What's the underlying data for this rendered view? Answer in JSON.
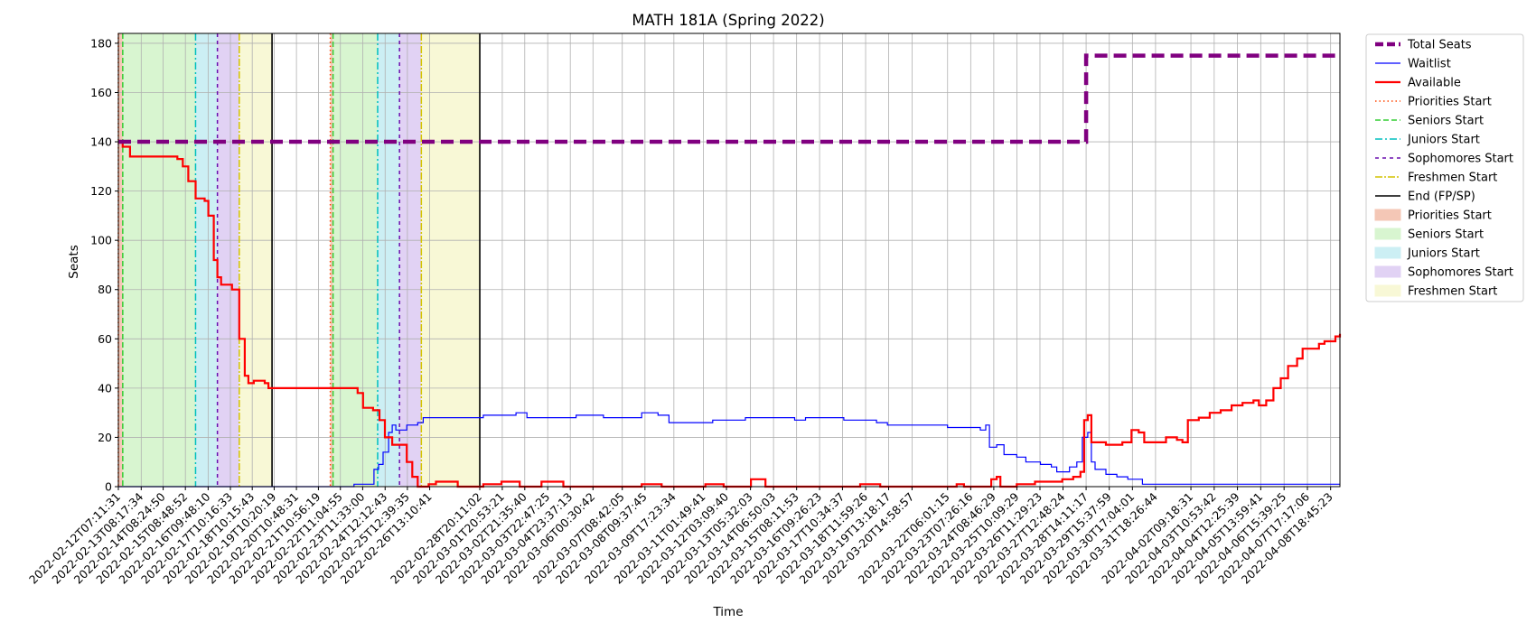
{
  "chart_data": {
    "type": "line",
    "title": "MATH 181A (Spring 2022)",
    "xlabel": "Time",
    "ylabel": "Seats",
    "x_axis": {
      "kind": "datetime",
      "range": [
        "2022-02-12T07:11:31",
        "2022-04-09T05:00:00"
      ],
      "tick_labels": [
        "2022-02-12T07:11:31",
        "2022-02-13T08:17:34",
        "2022-02-14T08:24:50",
        "2022-02-15T08:48:52",
        "2022-02-16T09:48:10",
        "2022-02-17T10:16:33",
        "2022-02-18T10:15:43",
        "2022-02-19T10:20:19",
        "2022-02-20T10:48:31",
        "2022-02-21T10:56:19",
        "2022-02-22T11:04:55",
        "2022-02-23T11:33:00",
        "2022-02-24T12:12:43",
        "2022-02-25T12:39:35",
        "2022-02-26T13:10:41",
        "2022-02-28T20:11:02",
        "2022-03-01T20:53:21",
        "2022-03-02T21:35:40",
        "2022-03-03T22:47:25",
        "2022-03-04T23:37:13",
        "2022-03-06T00:30:42",
        "2022-03-07T08:42:05",
        "2022-03-08T09:37:45",
        "2022-03-09T17:23:34",
        "2022-03-11T01:49:41",
        "2022-03-12T03:09:40",
        "2022-03-13T05:32:03",
        "2022-03-14T06:50:03",
        "2022-03-15T08:11:53",
        "2022-03-16T09:26:23",
        "2022-03-17T10:34:37",
        "2022-03-18T11:59:26",
        "2022-03-19T13:18:17",
        "2022-03-20T14:58:57",
        "2022-03-22T06:01:15",
        "2022-03-23T07:26:16",
        "2022-03-24T08:46:29",
        "2022-03-25T10:09:29",
        "2022-03-26T11:29:23",
        "2022-03-27T12:48:24",
        "2022-03-28T14:11:17",
        "2022-03-29T15:37:59",
        "2022-03-30T17:04:01",
        "2022-03-31T18:26:44",
        "2022-04-02T09:18:31",
        "2022-04-03T10:53:42",
        "2022-04-04T12:25:39",
        "2022-04-05T13:59:41",
        "2022-04-06T15:39:25",
        "2022-04-07T17:17:06",
        "2022-04-08T18:45:23"
      ]
    },
    "ylim": [
      0,
      184
    ],
    "y_ticks": [
      0,
      20,
      40,
      60,
      80,
      100,
      120,
      140,
      160,
      180
    ],
    "grid": true,
    "legend": "outside-right",
    "colors": {
      "total": "#800080",
      "waitlist": "#0000ff",
      "available": "#ff0000",
      "priorities": "#ff4500",
      "seniors": "#32cd32",
      "juniors": "#00bfbf",
      "sophomores": "#6a0dad",
      "freshmen": "#d4c400",
      "end": "#000000",
      "priorities_fill": "#f4c7b6",
      "seniors_fill": "#d8f5d0",
      "juniors_fill": "#cceff4",
      "sophomores_fill": "#e1d2f4",
      "freshmen_fill": "#f8f8d6",
      "grid": "#b0b0b0"
    },
    "series": [
      {
        "name": "Total Seats",
        "points": [
          [
            "2022-02-12T07:11:31",
            140
          ],
          [
            "2022-03-28T14:11:17",
            140
          ],
          [
            "2022-03-28T14:11:17",
            175
          ],
          [
            "2022-04-09T05:00:00",
            175
          ]
        ]
      },
      {
        "name": "Waitlist",
        "points": [
          [
            "2022-02-12T07:11:31",
            0
          ],
          [
            "2022-02-23T01:00:00",
            0
          ],
          [
            "2022-02-23T02:00:00",
            1
          ],
          [
            "2022-02-23T20:00:00",
            1
          ],
          [
            "2022-02-24T00:00:00",
            7
          ],
          [
            "2022-02-24T05:00:00",
            9
          ],
          [
            "2022-02-24T10:00:00",
            14
          ],
          [
            "2022-02-24T16:00:00",
            22
          ],
          [
            "2022-02-24T20:00:00",
            25
          ],
          [
            "2022-02-25T00:00:00",
            23
          ],
          [
            "2022-02-25T12:00:00",
            25
          ],
          [
            "2022-02-26T00:00:00",
            26
          ],
          [
            "2022-02-26T06:00:00",
            28
          ],
          [
            "2022-02-27T12:00:00",
            28
          ],
          [
            "2022-03-01T00:00:00",
            29
          ],
          [
            "2022-03-02T12:00:00",
            30
          ],
          [
            "2022-03-03T00:00:00",
            28
          ],
          [
            "2022-03-04T12:00:00",
            28
          ],
          [
            "2022-03-05T06:00:00",
            29
          ],
          [
            "2022-03-06T12:00:00",
            28
          ],
          [
            "2022-03-08T00:00:00",
            28
          ],
          [
            "2022-03-08T06:00:00",
            30
          ],
          [
            "2022-03-09T00:00:00",
            29
          ],
          [
            "2022-03-09T12:00:00",
            26
          ],
          [
            "2022-03-11T00:00:00",
            26
          ],
          [
            "2022-03-11T12:00:00",
            27
          ],
          [
            "2022-03-12T12:00:00",
            27
          ],
          [
            "2022-03-13T00:00:00",
            28
          ],
          [
            "2022-03-15T00:00:00",
            28
          ],
          [
            "2022-03-15T06:00:00",
            27
          ],
          [
            "2022-03-15T18:00:00",
            28
          ],
          [
            "2022-03-17T12:00:00",
            27
          ],
          [
            "2022-03-19T00:00:00",
            26
          ],
          [
            "2022-03-19T12:00:00",
            25
          ],
          [
            "2022-03-22T00:00:00",
            25
          ],
          [
            "2022-03-22T06:00:00",
            24
          ],
          [
            "2022-03-23T18:00:00",
            23
          ],
          [
            "2022-03-24T00:00:00",
            25
          ],
          [
            "2022-03-24T04:00:00",
            16
          ],
          [
            "2022-03-24T12:00:00",
            17
          ],
          [
            "2022-03-24T20:00:00",
            13
          ],
          [
            "2022-03-25T10:00:00",
            12
          ],
          [
            "2022-03-25T20:00:00",
            10
          ],
          [
            "2022-03-26T12:00:00",
            9
          ],
          [
            "2022-03-27T00:00:00",
            8
          ],
          [
            "2022-03-27T06:00:00",
            6
          ],
          [
            "2022-03-27T20:00:00",
            8
          ],
          [
            "2022-03-28T04:00:00",
            10
          ],
          [
            "2022-03-28T10:00:00",
            20
          ],
          [
            "2022-03-28T16:00:00",
            22
          ],
          [
            "2022-03-28T20:00:00",
            10
          ],
          [
            "2022-03-29T00:00:00",
            7
          ],
          [
            "2022-03-29T12:00:00",
            5
          ],
          [
            "2022-03-30T00:00:00",
            4
          ],
          [
            "2022-03-30T12:00:00",
            3
          ],
          [
            "2022-03-31T00:00:00",
            3
          ],
          [
            "2022-03-31T04:00:00",
            1
          ],
          [
            "2022-04-09T05:00:00",
            1
          ]
        ]
      },
      {
        "name": "Available",
        "points": [
          [
            "2022-02-12T07:11:31",
            140
          ],
          [
            "2022-02-12T12:00:00",
            138
          ],
          [
            "2022-02-12T20:00:00",
            134
          ],
          [
            "2022-02-14T12:00:00",
            134
          ],
          [
            "2022-02-15T00:00:00",
            133
          ],
          [
            "2022-02-15T06:00:00",
            130
          ],
          [
            "2022-02-15T12:00:00",
            124
          ],
          [
            "2022-02-15T20:00:00",
            117
          ],
          [
            "2022-02-16T06:00:00",
            116
          ],
          [
            "2022-02-16T10:00:00",
            110
          ],
          [
            "2022-02-16T16:00:00",
            92
          ],
          [
            "2022-02-16T20:00:00",
            85
          ],
          [
            "2022-02-17T00:00:00",
            82
          ],
          [
            "2022-02-17T12:00:00",
            80
          ],
          [
            "2022-02-17T20:00:00",
            60
          ],
          [
            "2022-02-18T02:00:00",
            45
          ],
          [
            "2022-02-18T06:00:00",
            42
          ],
          [
            "2022-02-18T12:00:00",
            43
          ],
          [
            "2022-02-19T00:00:00",
            42
          ],
          [
            "2022-02-19T04:00:00",
            40
          ],
          [
            "2022-02-23T00:00:00",
            40
          ],
          [
            "2022-02-23T06:00:00",
            38
          ],
          [
            "2022-02-23T12:00:00",
            32
          ],
          [
            "2022-02-23T23:00:00",
            31
          ],
          [
            "2022-02-24T06:00:00",
            27
          ],
          [
            "2022-02-24T12:00:00",
            20
          ],
          [
            "2022-02-24T20:00:00",
            17
          ],
          [
            "2022-02-25T06:00:00",
            17
          ],
          [
            "2022-02-25T12:00:00",
            10
          ],
          [
            "2022-02-25T18:00:00",
            4
          ],
          [
            "2022-02-26T00:00:00",
            0
          ],
          [
            "2022-02-26T12:00:00",
            1
          ],
          [
            "2022-02-26T20:00:00",
            2
          ],
          [
            "2022-02-27T12:00:00",
            2
          ],
          [
            "2022-02-27T20:00:00",
            0
          ],
          [
            "2022-02-28T20:00:00",
            0
          ],
          [
            "2022-03-01T00:00:00",
            1
          ],
          [
            "2022-03-01T12:00:00",
            1
          ],
          [
            "2022-03-01T20:00:00",
            2
          ],
          [
            "2022-03-02T12:00:00",
            2
          ],
          [
            "2022-03-02T16:00:00",
            0
          ],
          [
            "2022-03-03T12:00:00",
            0
          ],
          [
            "2022-03-03T16:00:00",
            2
          ],
          [
            "2022-03-04T12:00:00",
            2
          ],
          [
            "2022-03-04T16:00:00",
            0
          ],
          [
            "2022-03-08T00:00:00",
            0
          ],
          [
            "2022-03-08T06:00:00",
            1
          ],
          [
            "2022-03-09T00:00:00",
            1
          ],
          [
            "2022-03-09T04:00:00",
            0
          ],
          [
            "2022-03-11T00:00:00",
            0
          ],
          [
            "2022-03-11T04:00:00",
            1
          ],
          [
            "2022-03-11T20:00:00",
            1
          ],
          [
            "2022-03-12T00:00:00",
            0
          ],
          [
            "2022-03-13T00:00:00",
            0
          ],
          [
            "2022-03-13T06:00:00",
            3
          ],
          [
            "2022-03-13T18:00:00",
            3
          ],
          [
            "2022-03-13T22:00:00",
            0
          ],
          [
            "2022-03-18T00:00:00",
            0
          ],
          [
            "2022-03-18T06:00:00",
            1
          ],
          [
            "2022-03-19T00:00:00",
            1
          ],
          [
            "2022-03-19T04:00:00",
            0
          ],
          [
            "2022-03-22T12:00:00",
            0
          ],
          [
            "2022-03-22T16:00:00",
            1
          ],
          [
            "2022-03-23T00:00:00",
            0
          ],
          [
            "2022-03-24T00:00:00",
            0
          ],
          [
            "2022-03-24T06:00:00",
            3
          ],
          [
            "2022-03-24T12:00:00",
            4
          ],
          [
            "2022-03-24T16:00:00",
            0
          ],
          [
            "2022-03-25T06:00:00",
            0
          ],
          [
            "2022-03-25T10:00:00",
            1
          ],
          [
            "2022-03-26T00:00:00",
            1
          ],
          [
            "2022-03-26T06:00:00",
            2
          ],
          [
            "2022-03-27T00:00:00",
            2
          ],
          [
            "2022-03-27T12:00:00",
            3
          ],
          [
            "2022-03-28T00:00:00",
            4
          ],
          [
            "2022-03-28T08:00:00",
            6
          ],
          [
            "2022-03-28T12:00:00",
            27
          ],
          [
            "2022-03-28T16:00:00",
            29
          ],
          [
            "2022-03-28T20:00:00",
            18
          ],
          [
            "2022-03-29T12:00:00",
            17
          ],
          [
            "2022-03-30T00:00:00",
            17
          ],
          [
            "2022-03-30T06:00:00",
            18
          ],
          [
            "2022-03-30T16:00:00",
            23
          ],
          [
            "2022-03-31T00:00:00",
            22
          ],
          [
            "2022-03-31T06:00:00",
            18
          ],
          [
            "2022-04-01T00:00:00",
            18
          ],
          [
            "2022-04-01T06:00:00",
            20
          ],
          [
            "2022-04-01T18:00:00",
            19
          ],
          [
            "2022-04-02T00:00:00",
            18
          ],
          [
            "2022-04-02T06:00:00",
            27
          ],
          [
            "2022-04-02T18:00:00",
            28
          ],
          [
            "2022-04-03T06:00:00",
            30
          ],
          [
            "2022-04-03T18:00:00",
            31
          ],
          [
            "2022-04-04T06:00:00",
            33
          ],
          [
            "2022-04-04T18:00:00",
            34
          ],
          [
            "2022-04-05T06:00:00",
            35
          ],
          [
            "2022-04-05T12:00:00",
            33
          ],
          [
            "2022-04-05T20:00:00",
            35
          ],
          [
            "2022-04-06T04:00:00",
            40
          ],
          [
            "2022-04-06T12:00:00",
            44
          ],
          [
            "2022-04-06T20:00:00",
            49
          ],
          [
            "2022-04-07T06:00:00",
            52
          ],
          [
            "2022-04-07T12:00:00",
            56
          ],
          [
            "2022-04-08T00:00:00",
            56
          ],
          [
            "2022-04-08T06:00:00",
            58
          ],
          [
            "2022-04-08T12:00:00",
            59
          ],
          [
            "2022-04-08T20:00:00",
            59
          ],
          [
            "2022-04-09T00:00:00",
            61
          ],
          [
            "2022-04-09T05:00:00",
            62
          ]
        ]
      }
    ],
    "phase_windows": [
      {
        "label": "Priorities Start",
        "start": "2022-02-12T07:11:31",
        "end": "2022-02-12T12:00:00"
      },
      {
        "label": "Seniors Start",
        "start": "2022-02-12T12:00:00",
        "end": "2022-02-15T20:00:00"
      },
      {
        "label": "Juniors Start",
        "start": "2022-02-15T20:00:00",
        "end": "2022-02-16T20:00:00"
      },
      {
        "label": "Sophomores Start",
        "start": "2022-02-16T20:00:00",
        "end": "2022-02-17T20:00:00"
      },
      {
        "label": "Freshmen Start",
        "start": "2022-02-17T20:00:00",
        "end": "2022-02-19T08:00:00"
      },
      {
        "label": "Priorities Start",
        "start": "2022-02-22T00:00:00",
        "end": "2022-02-22T03:00:00"
      },
      {
        "label": "Seniors Start",
        "start": "2022-02-22T03:00:00",
        "end": "2022-02-24T04:00:00"
      },
      {
        "label": "Juniors Start",
        "start": "2022-02-24T04:00:00",
        "end": "2022-02-25T04:00:00"
      },
      {
        "label": "Sophomores Start",
        "start": "2022-02-25T04:00:00",
        "end": "2022-02-26T04:00:00"
      },
      {
        "label": "Freshmen Start",
        "start": "2022-02-26T04:00:00",
        "end": "2022-02-28T20:11:02"
      }
    ],
    "legend_entries": [
      "Total Seats",
      "Waitlist",
      "Available",
      "Priorities Start",
      "Seniors Start",
      "Juniors Start",
      "Sophomores Start",
      "Freshmen Start",
      "End (FP/SP)",
      "Priorities Start",
      "Seniors Start",
      "Juniors Start",
      "Sophomores Start",
      "Freshmen Start"
    ]
  }
}
